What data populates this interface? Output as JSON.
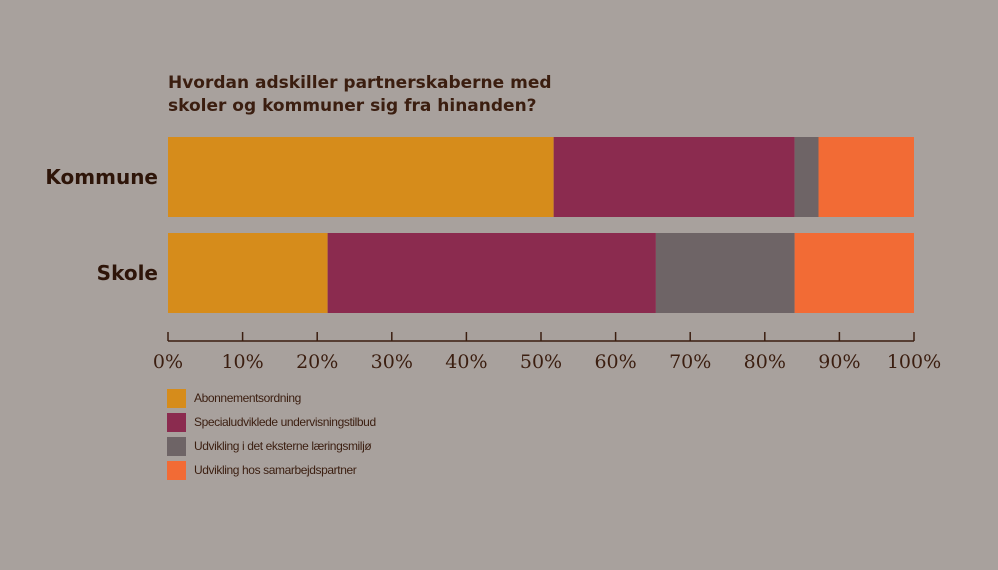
{
  "chart_data": {
    "type": "bar",
    "orientation": "horizontal",
    "stacked": true,
    "title": [
      "Hvordan adskiller partnerskaberne med",
      "skoler og kommuner sig fra hinanden?"
    ],
    "categories": [
      "Kommune",
      "Skole"
    ],
    "series": [
      {
        "name": "Abonnementsordning",
        "color": "#d68c1b",
        "values": [
          51.7,
          21.4
        ]
      },
      {
        "name": "Specialudviklede undervisningstilbud",
        "color": "#8b2b4f",
        "values": [
          32.3,
          44.0
        ]
      },
      {
        "name": "Udvikling i det eksterne læringsmiljø",
        "color": "#6e6466",
        "values": [
          3.2,
          18.6
        ]
      },
      {
        "name": "Udvikling hos samarbejdspartner",
        "color": "#f26b35",
        "values": [
          12.8,
          16.0
        ]
      }
    ],
    "xlim": [
      0,
      100
    ],
    "xticks": [
      "0%",
      "10%",
      "20%",
      "30%",
      "40%",
      "50%",
      "60%",
      "70%",
      "80%",
      "90%",
      "100%"
    ],
    "grid": false,
    "legend_position": "bottom-left"
  }
}
